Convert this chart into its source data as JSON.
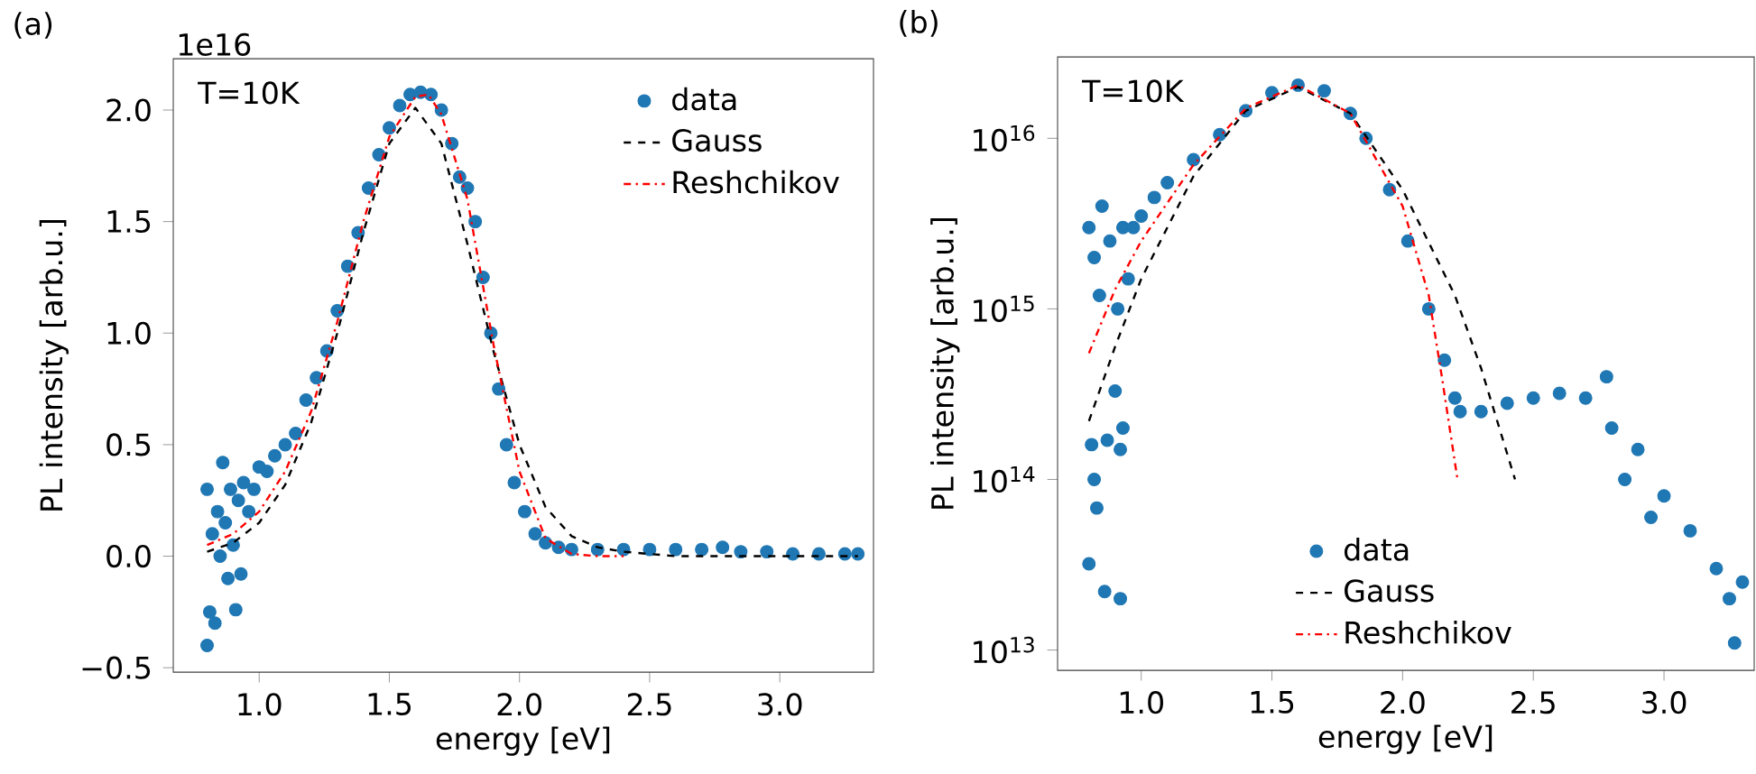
{
  "chart_data": [
    {
      "type": "scatter",
      "title": "(a)",
      "xlabel": "energy [eV]",
      "ylabel": "PL intensity [arb.u.]",
      "annotations": [
        "T=10K",
        "1e16"
      ],
      "xlim": [
        0.67,
        3.36
      ],
      "ylim": [
        -0.52,
        2.23
      ],
      "xticks": [
        {
          "value": 1,
          "label": "1.0"
        },
        {
          "value": 1.5,
          "label": "1.5"
        },
        {
          "value": 2,
          "label": "2.0"
        },
        {
          "value": 2.5,
          "label": "2.5"
        },
        {
          "value": 3,
          "label": "3.0"
        }
      ],
      "yticks": [
        {
          "value": -0.5,
          "label": "−0.5"
        },
        {
          "value": 0,
          "label": "0.0"
        },
        {
          "value": 0.5,
          "label": "0.5"
        },
        {
          "value": 1,
          "label": "1.0"
        },
        {
          "value": 1.5,
          "label": "1.5"
        },
        {
          "value": 2,
          "label": "2.0"
        }
      ],
      "grid": false,
      "legend": "top right",
      "series": [
        {
          "name": "data",
          "type": "scatter",
          "marker": "circle",
          "color": "#1f77b4",
          "x": [
            0.8,
            0.8,
            0.81,
            0.82,
            0.83,
            0.84,
            0.85,
            0.86,
            0.87,
            0.88,
            0.89,
            0.9,
            0.91,
            0.92,
            0.93,
            0.94,
            0.96,
            0.98,
            1.0,
            1.03,
            1.06,
            1.1,
            1.14,
            1.18,
            1.22,
            1.26,
            1.3,
            1.34,
            1.38,
            1.42,
            1.46,
            1.5,
            1.54,
            1.58,
            1.62,
            1.66,
            1.7,
            1.74,
            1.77,
            1.8,
            1.83,
            1.86,
            1.89,
            1.92,
            1.95,
            1.98,
            2.02,
            2.06,
            2.1,
            2.15,
            2.2,
            2.3,
            2.4,
            2.5,
            2.6,
            2.7,
            2.78,
            2.85,
            2.95,
            3.05,
            3.15,
            3.25,
            3.3
          ],
          "values": [
            -0.4,
            0.3,
            -0.25,
            0.1,
            -0.3,
            0.2,
            0.0,
            0.42,
            0.15,
            -0.1,
            0.3,
            0.05,
            -0.24,
            0.25,
            -0.08,
            0.33,
            0.2,
            0.3,
            0.4,
            0.38,
            0.45,
            0.5,
            0.55,
            0.7,
            0.8,
            0.92,
            1.1,
            1.3,
            1.45,
            1.65,
            1.8,
            1.92,
            2.02,
            2.07,
            2.08,
            2.07,
            2.0,
            1.85,
            1.7,
            1.65,
            1.5,
            1.25,
            1.0,
            0.75,
            0.5,
            0.33,
            0.2,
            0.1,
            0.06,
            0.04,
            0.03,
            0.03,
            0.03,
            0.03,
            0.03,
            0.03,
            0.04,
            0.02,
            0.02,
            0.01,
            0.01,
            0.01,
            0.01
          ]
        },
        {
          "name": "Gauss",
          "type": "line",
          "line_style": "dashed",
          "color": "#000000",
          "x": [
            0.8,
            0.9,
            1.0,
            1.1,
            1.2,
            1.3,
            1.4,
            1.5,
            1.6,
            1.7,
            1.8,
            1.9,
            2.0,
            2.1,
            2.2,
            2.3,
            2.4,
            2.6,
            3.3
          ],
          "values": [
            0.02,
            0.06,
            0.15,
            0.32,
            0.6,
            1.0,
            1.45,
            1.85,
            2.01,
            1.85,
            1.4,
            0.92,
            0.5,
            0.22,
            0.09,
            0.04,
            0.02,
            0.0,
            0.0
          ]
        },
        {
          "name": "Reshchikov",
          "type": "line",
          "line_style": "dashdot",
          "color": "#ff0000",
          "x": [
            0.8,
            0.9,
            1.0,
            1.1,
            1.2,
            1.3,
            1.4,
            1.5,
            1.6,
            1.65,
            1.7,
            1.8,
            1.9,
            2.0,
            2.1,
            2.2,
            2.3,
            2.4
          ],
          "values": [
            0.05,
            0.1,
            0.2,
            0.38,
            0.65,
            1.05,
            1.5,
            1.88,
            2.06,
            2.07,
            1.98,
            1.6,
            0.95,
            0.38,
            0.08,
            0.01,
            0.0,
            0.0
          ]
        }
      ]
    },
    {
      "type": "scatter",
      "title": "(b)",
      "xlabel": "energy [eV]",
      "ylabel": "PL intensity [arb.u.]",
      "annotations": [
        "T=10K"
      ],
      "log": "y",
      "xlim": [
        0.68,
        3.345
      ],
      "ylim": [
        7600000000000.0,
        3e+16
      ],
      "xticks": [
        {
          "value": 1,
          "label": "1.0"
        },
        {
          "value": 1.5,
          "label": "1.5"
        },
        {
          "value": 2,
          "label": "2.0"
        },
        {
          "value": 2.5,
          "label": "2.5"
        },
        {
          "value": 3,
          "label": "3.0"
        }
      ],
      "yticks": [
        {
          "value": 10000000000000.0,
          "label": "10$^{13}$"
        },
        {
          "value": 100000000000000.0,
          "label": "10$^{14}$"
        },
        {
          "value": 1000000000000000.0,
          "label": "10$^{15}$"
        },
        {
          "value": 1e+16,
          "label": "10$^{16}$"
        }
      ],
      "grid": false,
      "legend": "bottom",
      "series": [
        {
          "name": "data",
          "type": "scatter",
          "marker": "circle",
          "color": "#1f77b4",
          "x": [
            0.8,
            0.8,
            0.81,
            0.82,
            0.82,
            0.83,
            0.84,
            0.85,
            0.86,
            0.87,
            0.88,
            0.9,
            0.91,
            0.92,
            0.92,
            0.93,
            0.93,
            0.95,
            0.97,
            1.0,
            1.05,
            1.1,
            1.2,
            1.3,
            1.4,
            1.5,
            1.6,
            1.7,
            1.8,
            1.86,
            1.95,
            2.02,
            2.1,
            2.16,
            2.2,
            2.22,
            2.3,
            2.4,
            2.5,
            2.6,
            2.7,
            2.78,
            2.8,
            2.85,
            2.9,
            2.95,
            3.0,
            3.1,
            3.2,
            3.25,
            3.27,
            3.3
          ],
          "values": [
            32000000000000.0,
            3000000000000000.0,
            160000000000000.0,
            100000000000000.0,
            2000000000000000.0,
            68000000000000.0,
            1200000000000000.0,
            4000000000000000.0,
            22000000000000.0,
            170000000000000.0,
            2500000000000000.0,
            330000000000000.0,
            1000000000000000.0,
            20000000000000.0,
            150000000000000.0,
            200000000000000.0,
            3000000000000000.0,
            1500000000000000.0,
            3000000000000000.0,
            3500000000000000.0,
            4500000000000000.0,
            5500000000000000.0,
            7500000000000000.0,
            1.05e+16,
            1.45e+16,
            1.85e+16,
            2.05e+16,
            1.9e+16,
            1.4e+16,
            1e+16,
            5000000000000000.0,
            2500000000000000.0,
            1000000000000000.0,
            500000000000000.0,
            300000000000000.0,
            250000000000000.0,
            250000000000000.0,
            280000000000000.0,
            300000000000000.0,
            320000000000000.0,
            300000000000000.0,
            400000000000000.0,
            200000000000000.0,
            100000000000000.0,
            150000000000000.0,
            60000000000000.0,
            80000000000000.0,
            50000000000000.0,
            30000000000000.0,
            20000000000000.0,
            11000000000000.0,
            25000000000000.0
          ]
        },
        {
          "name": "Gauss",
          "type": "line",
          "line_style": "dashed",
          "color": "#000000",
          "x": [
            0.8,
            0.9,
            1.0,
            1.2,
            1.4,
            1.6,
            1.8,
            2.0,
            2.2,
            2.3,
            2.43
          ],
          "values": [
            220000000000000.0,
            600000000000000.0,
            1500000000000000.0,
            6000000000000000.0,
            1.45e+16,
            2e+16,
            1.4e+16,
            5000000000000000.0,
            1200000000000000.0,
            450000000000000.0,
            100000000000000.0
          ]
        },
        {
          "name": "Reshchikov",
          "type": "line",
          "line_style": "dashdot",
          "color": "#ff0000",
          "x": [
            0.8,
            0.9,
            1.0,
            1.2,
            1.4,
            1.6,
            1.8,
            2.0,
            2.1,
            2.15,
            2.21
          ],
          "values": [
            550000000000000.0,
            1300000000000000.0,
            2500000000000000.0,
            7000000000000000.0,
            1.5e+16,
            2.05e+16,
            1.4e+16,
            4000000000000000.0,
            1200000000000000.0,
            400000000000000.0,
            100000000000000.0
          ]
        }
      ]
    }
  ]
}
